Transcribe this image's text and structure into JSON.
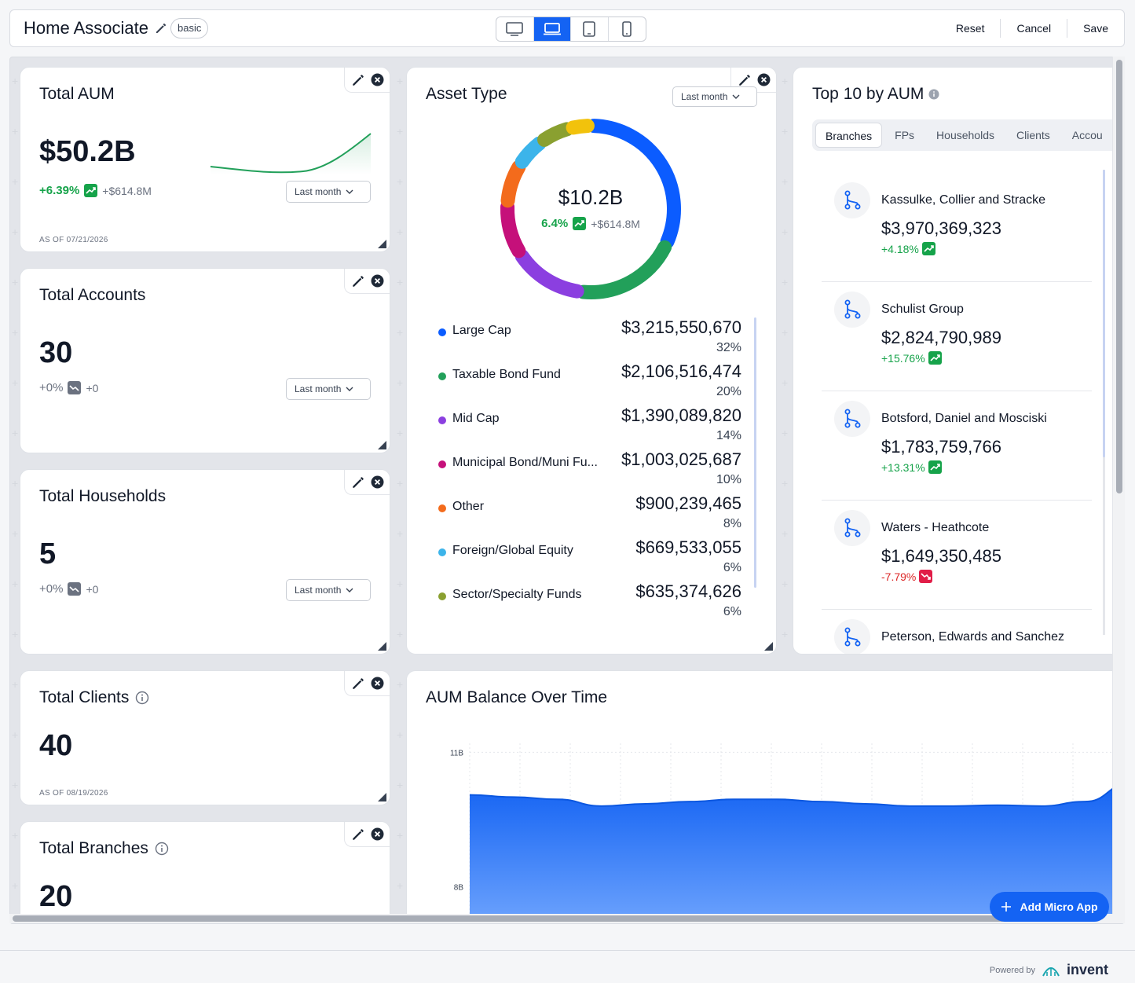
{
  "header": {
    "title": "Home Associate",
    "badge": "basic",
    "devices": [
      "desktop-icon",
      "laptop-icon",
      "tablet-icon",
      "phone-icon"
    ],
    "active_device": "laptop-icon",
    "actions": {
      "reset": "Reset",
      "cancel": "Cancel",
      "save": "Save"
    }
  },
  "cards": {
    "aum": {
      "title": "Total AUM",
      "value": "$50.2B",
      "pct": "+6.39%",
      "abs": "+$614.8M",
      "period": "Last month",
      "asof": "AS OF 07/21/2026"
    },
    "accounts": {
      "title": "Total Accounts",
      "value": "30",
      "pct": "+0%",
      "abs": "+0",
      "period": "Last month"
    },
    "households": {
      "title": "Total Households",
      "value": "5",
      "pct": "+0%",
      "abs": "+0",
      "period": "Last month"
    },
    "clients": {
      "title": "Total Clients",
      "value": "40",
      "asof": "AS OF 08/19/2026"
    },
    "branches": {
      "title": "Total Branches",
      "value": "20"
    }
  },
  "asset_type": {
    "title": "Asset Type",
    "period": "Last month",
    "center_value": "$10.2B",
    "center_pct": "6.4%",
    "center_abs": "+$614.8M",
    "items": [
      {
        "name": "Large Cap",
        "value": "$3,215,550,670",
        "pct": "32%",
        "color": "#0b5cff"
      },
      {
        "name": "Taxable Bond Fund",
        "value": "$2,106,516,474",
        "pct": "20%",
        "color": "#22a05a"
      },
      {
        "name": "Mid Cap",
        "value": "$1,390,089,820",
        "pct": "14%",
        "color": "#8b3fe0"
      },
      {
        "name": "Municipal Bond/Muni Fu...",
        "value": "$1,003,025,687",
        "pct": "10%",
        "color": "#c5107a"
      },
      {
        "name": "Other",
        "value": "$900,239,465",
        "pct": "8%",
        "color": "#f36b1c"
      },
      {
        "name": "Foreign/Global Equity",
        "value": "$669,533,055",
        "pct": "6%",
        "color": "#3cb4ea"
      },
      {
        "name": "Sector/Specialty Funds",
        "value": "$635,374,626",
        "pct": "6%",
        "color": "#8aa030"
      }
    ],
    "extra_segment_color": "#f2c20c"
  },
  "top10": {
    "title": "Top 10 by AUM",
    "tabs": [
      "Branches",
      "FPs",
      "Households",
      "Clients",
      "Accou"
    ],
    "active_tab": "Branches",
    "items": [
      {
        "name": "Kassulke, Collier and Stracke",
        "value": "$3,970,369,323",
        "pct": "+4.18%",
        "dir": "up"
      },
      {
        "name": "Schulist Group",
        "value": "$2,824,790,989",
        "pct": "+15.76%",
        "dir": "up"
      },
      {
        "name": "Botsford, Daniel and Mosciski",
        "value": "$1,783,759,766",
        "pct": "+13.31%",
        "dir": "up"
      },
      {
        "name": "Waters - Heathcote",
        "value": "$1,649,350,485",
        "pct": "-7.79%",
        "dir": "down"
      },
      {
        "name": "Peterson, Edwards and Sanchez",
        "value": "",
        "pct": "",
        "dir": "up"
      }
    ]
  },
  "aum_chart": {
    "title": "AUM Balance Over Time",
    "y_ticks": [
      "11B",
      "8B"
    ]
  },
  "add_button": "Add Micro App",
  "footer": {
    "powered": "Powered by",
    "brand": "invent"
  },
  "chart_data": {
    "type": "area",
    "title": "AUM Balance Over Time",
    "y_ticks": [
      "11B",
      "8B"
    ],
    "values": [
      10.05,
      10.0,
      9.95,
      9.8,
      9.85,
      9.9,
      9.95,
      9.95,
      9.9,
      9.85,
      9.8,
      9.8,
      9.82,
      9.8,
      9.9,
      10.3
    ],
    "ylim": [
      6.5,
      11.2
    ]
  }
}
